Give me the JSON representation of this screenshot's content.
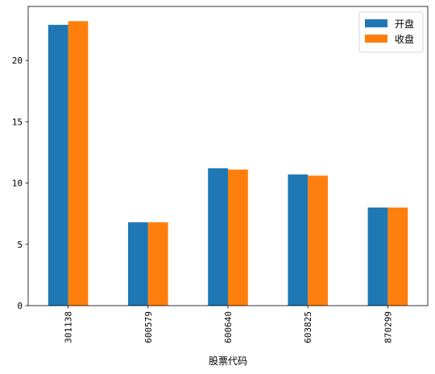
{
  "chart_data": {
    "type": "bar",
    "title": "",
    "xlabel": "股票代码",
    "ylabel": "",
    "categories": [
      "301138",
      "600579",
      "600640",
      "603825",
      "870299"
    ],
    "series": [
      {
        "name": "开盘",
        "color": "#1f77b4",
        "values": [
          22.9,
          6.8,
          11.2,
          10.7,
          8.0
        ]
      },
      {
        "name": "收盘",
        "color": "#ff7f0e",
        "values": [
          23.2,
          6.8,
          11.1,
          10.6,
          8.0
        ]
      }
    ],
    "ylim": [
      0,
      24.4
    ],
    "yticks": [
      0,
      5,
      10,
      15,
      20
    ],
    "legend": "top-right",
    "grid": false
  }
}
